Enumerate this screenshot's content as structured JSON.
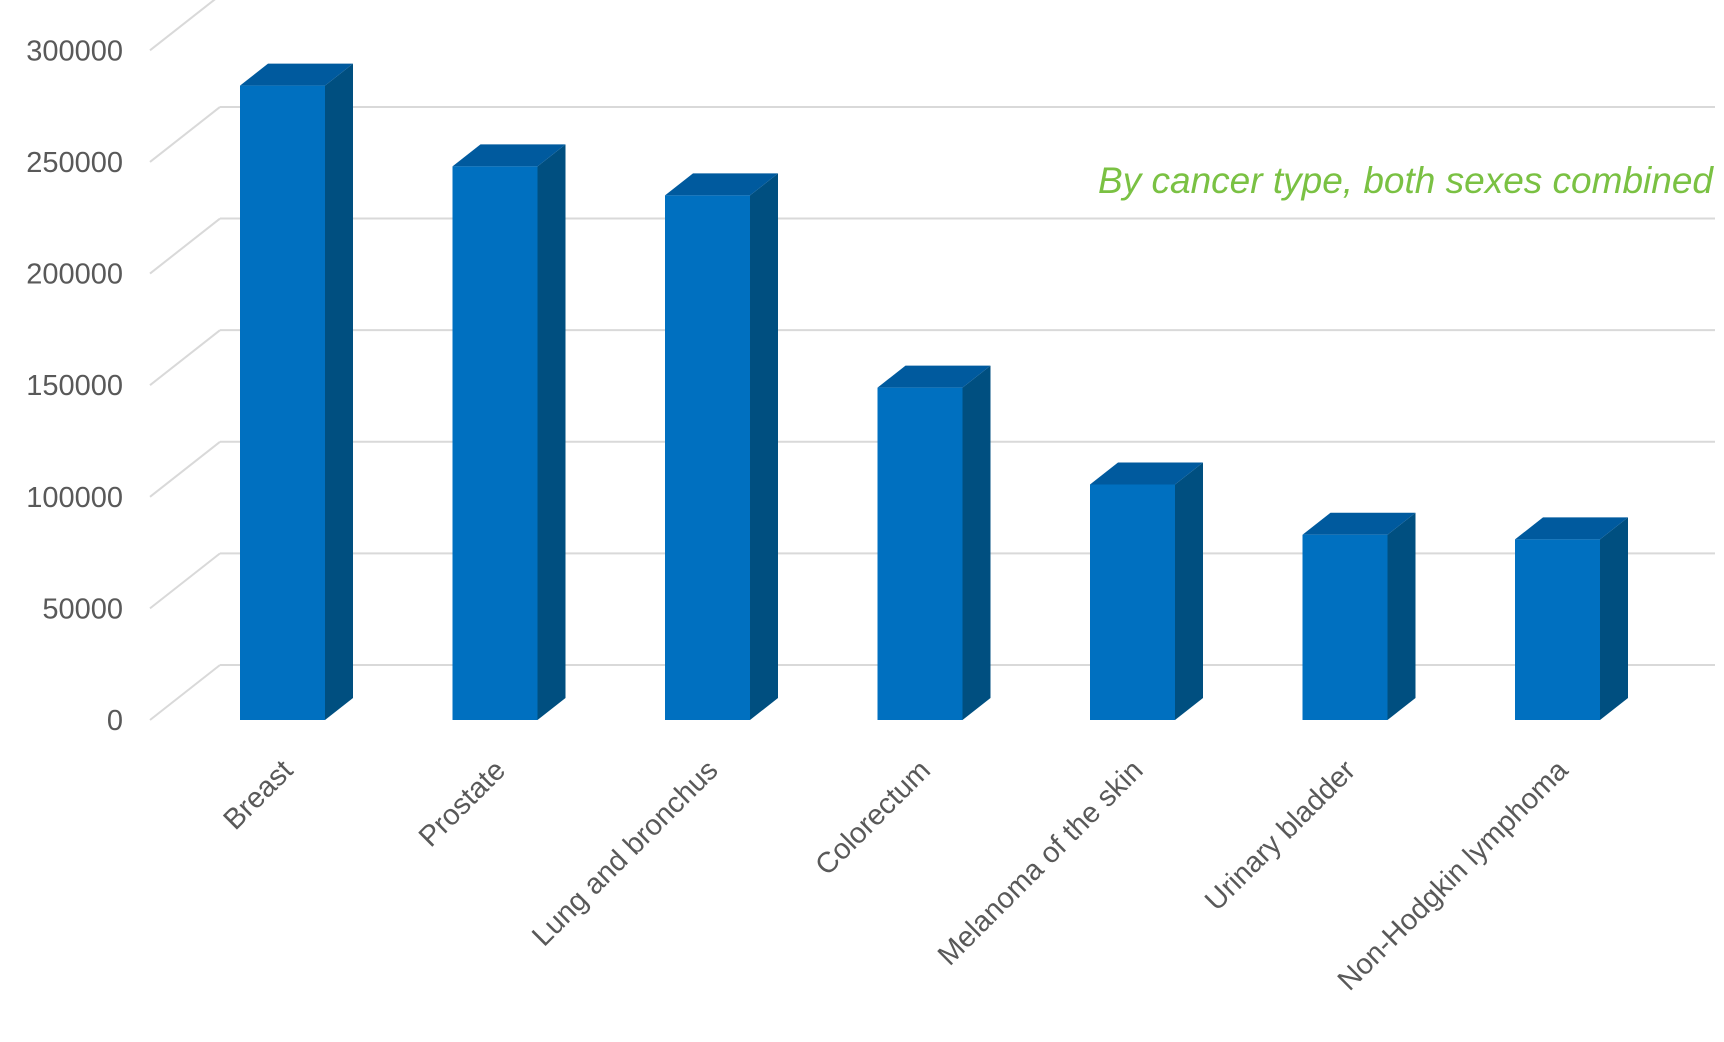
{
  "chart_data": {
    "type": "bar",
    "style": "3d-column",
    "categories": [
      "Breast",
      "Prostate",
      "Lung and bronchus",
      "Colorectum",
      "Melanoma of the skin",
      "Urinary bladder",
      "Non-Hodgkin lymphoma"
    ],
    "values": [
      284200,
      248000,
      235000,
      148900,
      105500,
      83000,
      80900
    ],
    "ylim": [
      0,
      300000
    ],
    "y_ticks": [
      "0",
      "50000",
      "100000",
      "150000",
      "200000",
      "250000",
      "300000"
    ],
    "grid": true,
    "annotation": "By cancer type, both sexes combined",
    "xlabel": "",
    "ylabel": "",
    "colors": {
      "bar_front": "#0070C0",
      "bar_top": "#005A9E",
      "bar_side": "#004F80",
      "grid": "#D9D9D9",
      "tick_text": "#595959",
      "annotation_text": "#7AC143"
    }
  }
}
